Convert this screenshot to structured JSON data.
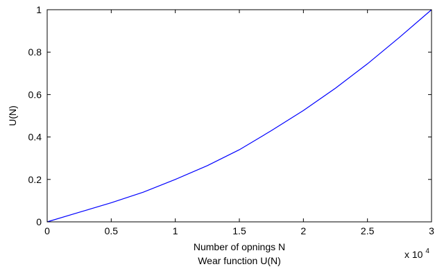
{
  "chart_data": {
    "type": "line",
    "xlabel": "Number of opnings N",
    "title_below": "Wear function U(N)",
    "ylabel": "U(N)",
    "x_multiplier_label": {
      "base": "x 10",
      "exponent": "4"
    },
    "xlim": [
      0,
      3
    ],
    "ylim": [
      0,
      1
    ],
    "x_ticks": [
      "0",
      "0.5",
      "1",
      "1.5",
      "2",
      "2.5",
      "3"
    ],
    "y_ticks": [
      "0",
      "0.2",
      "0.4",
      "0.6",
      "0.8",
      "1"
    ],
    "grid": false,
    "series": [
      {
        "color": "#0000ff",
        "x": [
          0,
          0.25,
          0.5,
          0.75,
          1.0,
          1.25,
          1.5,
          1.75,
          2.0,
          2.25,
          2.5,
          2.75,
          3.0
        ],
        "y": [
          0,
          0.045,
          0.09,
          0.14,
          0.2,
          0.265,
          0.34,
          0.43,
          0.525,
          0.63,
          0.745,
          0.87,
          1.0
        ]
      }
    ]
  }
}
